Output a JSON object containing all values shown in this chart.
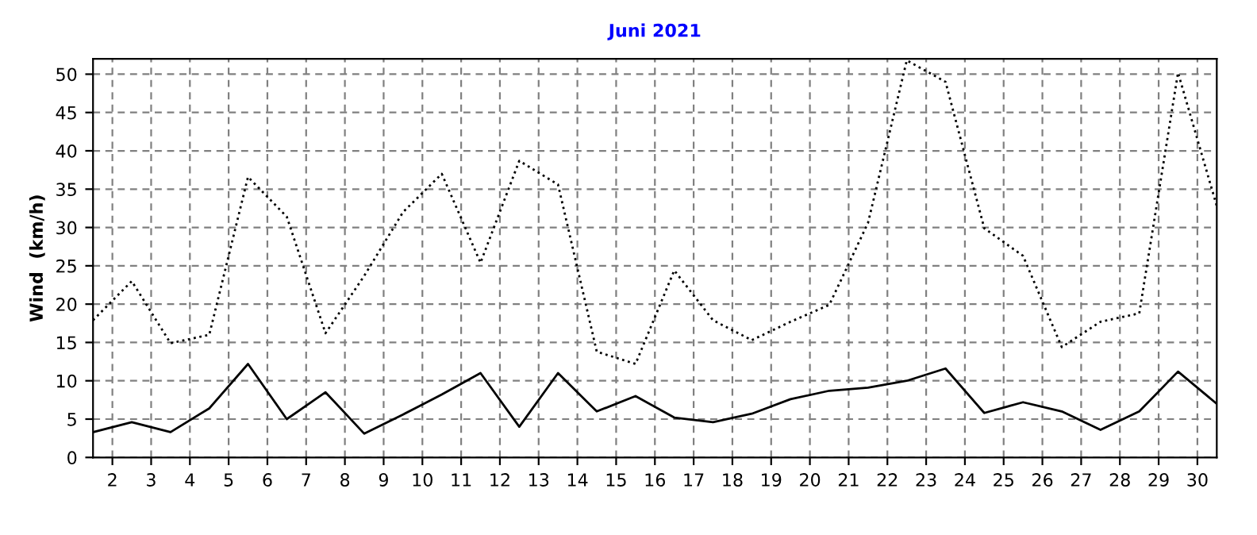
{
  "chart_data": {
    "type": "line",
    "title": "Juni 2021",
    "ylabel": "Wind  (km/h)",
    "x": [
      1.5,
      2.5,
      3.5,
      4.5,
      5.5,
      6.5,
      7.5,
      8.5,
      9.5,
      10.5,
      11.5,
      12.5,
      13.5,
      14.5,
      15.5,
      16.5,
      17.5,
      18.5,
      19.5,
      20.5,
      21.5,
      22.5,
      23.5,
      24.5,
      25.5,
      26.5,
      27.5,
      28.5,
      29.5,
      30.5
    ],
    "series": [
      {
        "color": "#000000",
        "line_style": "dotted",
        "values": [
          17.9,
          23.0,
          14.9,
          16.0,
          36.6,
          31.4,
          16.2,
          23.7,
          32.0,
          37.0,
          25.4,
          38.7,
          35.6,
          13.8,
          12.2,
          24.4,
          17.9,
          15.3,
          17.7,
          19.9,
          30.6,
          51.8,
          49.0,
          29.9,
          26.3,
          14.4,
          17.7,
          18.8,
          50.2,
          32.8
        ]
      },
      {
        "color": "#000000",
        "line_style": "solid",
        "values": [
          3.3,
          4.6,
          3.3,
          6.4,
          12.2,
          5.0,
          8.5,
          3.1,
          5.6,
          8.2,
          11.0,
          4.0,
          11.0,
          6.0,
          8.0,
          5.2,
          4.6,
          5.7,
          7.6,
          8.7,
          9.1,
          10.0,
          11.6,
          5.8,
          7.2,
          6.0,
          3.6,
          6.0,
          11.2,
          7.0
        ]
      }
    ],
    "xlim": [
      1.5,
      30.5
    ],
    "ylim": [
      0,
      52
    ],
    "xticks": [
      2,
      3,
      4,
      5,
      6,
      7,
      8,
      9,
      10,
      11,
      12,
      13,
      14,
      15,
      16,
      17,
      18,
      19,
      20,
      21,
      22,
      23,
      24,
      25,
      26,
      27,
      28,
      29,
      30
    ],
    "yticks": [
      0,
      5,
      10,
      15,
      20,
      25,
      30,
      35,
      40,
      45,
      50
    ],
    "grid": true,
    "legend": false
  }
}
